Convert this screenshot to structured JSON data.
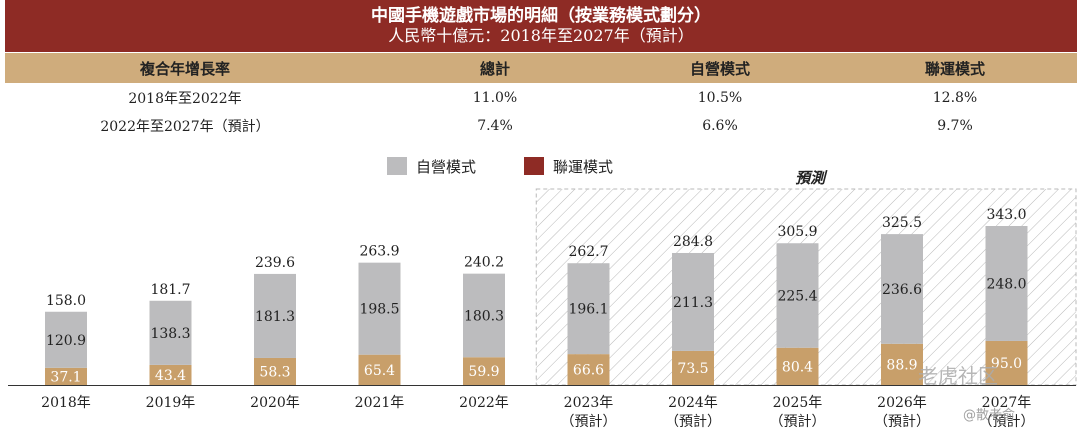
{
  "title": {
    "line1": "中國手機遊戲市場的明細（按業務模式劃分）",
    "line2": "人民幣十億元：2018年至2027年（預計）"
  },
  "cagr_table": {
    "headers": [
      "複合年增長率",
      "總計",
      "自營模式",
      "聯運模式"
    ],
    "rows": [
      [
        "2018年至2022年",
        "11.0%",
        "10.5%",
        "12.8%"
      ],
      [
        "2022年至2027年（預計）",
        "7.4%",
        "6.6%",
        "9.7%"
      ]
    ]
  },
  "legend": {
    "self": "自營模式",
    "joint": "聯運模式"
  },
  "forecast_label": "預測",
  "colors": {
    "banner": "#8e2b25",
    "header": "#cfac7c",
    "self_bar": "#bcbcbe",
    "joint_bar": "#c89f6a",
    "legend_joint": "#8e2b25"
  },
  "chart_data": {
    "type": "bar",
    "stacked": true,
    "title": "中國手機遊戲市場的明細（按業務模式劃分）",
    "ylabel": "人民幣十億元",
    "categories": [
      "2018年",
      "2019年",
      "2020年",
      "2021年",
      "2022年",
      "2023年",
      "2024年",
      "2025年",
      "2026年",
      "2027年"
    ],
    "category_subs": [
      "",
      "",
      "",
      "",
      "",
      "（預計）",
      "（預計）",
      "（預計）",
      "（預計）",
      "（預計）"
    ],
    "series": [
      {
        "name": "聯運模式",
        "values": [
          37.1,
          43.4,
          58.3,
          65.4,
          59.9,
          66.6,
          73.5,
          80.4,
          88.9,
          95.0
        ]
      },
      {
        "name": "自營模式",
        "values": [
          120.9,
          138.3,
          181.3,
          198.5,
          180.3,
          196.1,
          211.3,
          225.4,
          236.6,
          248.0
        ]
      }
    ],
    "totals": [
      158.0,
      181.7,
      239.6,
      263.9,
      240.2,
      262.7,
      284.8,
      305.9,
      325.5,
      343.0
    ],
    "forecast_start_index": 5,
    "ylim": [
      0,
      343.0
    ]
  },
  "watermark": {
    "main": "老虎社区",
    "sub": "@散老俞"
  }
}
